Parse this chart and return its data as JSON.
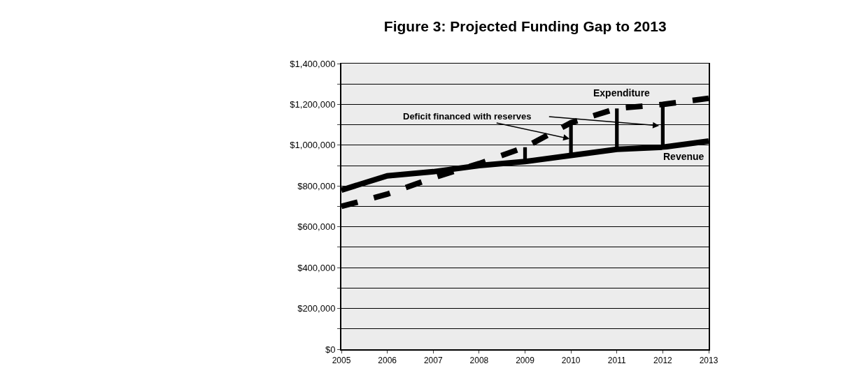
{
  "chart_data": {
    "type": "line",
    "title": "Figure 3: Projected Funding Gap to 2013",
    "x": [
      2005,
      2006,
      2007,
      2008,
      2009,
      2010,
      2011,
      2012,
      2013
    ],
    "series": [
      {
        "name": "Revenue",
        "color": "#000000",
        "line_style": "solid",
        "values": [
          780000,
          850000,
          870000,
          900000,
          920000,
          950000,
          980000,
          990000,
          1020000
        ]
      },
      {
        "name": "Expenditure",
        "color": "#000000",
        "line_style": "dashed",
        "values": [
          700000,
          760000,
          840000,
          910000,
          990000,
          1110000,
          1180000,
          1200000,
          1230000
        ]
      },
      {
        "type": "bar",
        "color": "#000000",
        "x": [
          2009,
          2010,
          2011,
          2012
        ],
        "base": [
          920000,
          950000,
          980000,
          990000
        ],
        "values": [
          70000,
          160000,
          200000,
          210000
        ]
      }
    ],
    "annotations": [
      {
        "text": "Deficit financed with reserves",
        "x": 2010,
        "y": 1030000
      }
    ],
    "xlim": [
      2005,
      2013
    ],
    "xticks": [
      2005,
      2006,
      2007,
      2008,
      2009,
      2010,
      2011,
      2012,
      2013
    ],
    "ylim": [
      0,
      1400000
    ],
    "yticks": [
      {
        "value": 0,
        "label": "$0"
      },
      {
        "value": 100000,
        "label": null
      },
      {
        "value": 200000,
        "label": "$200,000"
      },
      {
        "value": 300000,
        "label": null
      },
      {
        "value": 400000,
        "label": "$400,000"
      },
      {
        "value": 500000,
        "label": null
      },
      {
        "value": 600000,
        "label": "$600,000"
      },
      {
        "value": 700000,
        "label": null
      },
      {
        "value": 800000,
        "label": "$800,000"
      },
      {
        "value": 900000,
        "label": null
      },
      {
        "value": 1000000,
        "label": "$1,000,000"
      },
      {
        "value": 1100000,
        "label": null
      },
      {
        "value": 1200000,
        "label": "$1,200,000"
      },
      {
        "value": 1300000,
        "label": null
      },
      {
        "value": 1400000,
        "label": "$1,400,000"
      }
    ],
    "grid": "y",
    "legend": false,
    "marker": "none"
  }
}
